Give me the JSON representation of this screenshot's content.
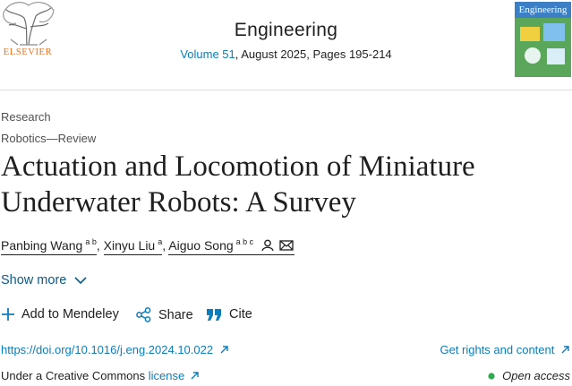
{
  "publisher": {
    "name": "ELSEVIER"
  },
  "journal": {
    "name": "Engineering",
    "volume_link": "Volume 51",
    "issue_details": ", August 2025, Pages 195-214",
    "cover_title": "Engineering"
  },
  "article": {
    "type": "Research",
    "section": "Robotics—Review",
    "title": "Actuation and Locomotion of Miniature Underwater Robots: A Survey",
    "authors": [
      {
        "name": "Panbing Wang",
        "affiliations": "a b"
      },
      {
        "name": "Xinyu Liu",
        "affiliations": "a"
      },
      {
        "name": "Aiguo Song",
        "affiliations": "a b c"
      }
    ],
    "author_separator": ","
  },
  "show_more": "Show more",
  "actions": [
    "Add to Mendeley",
    "Share",
    "Cite"
  ],
  "doi": "https://doi.org/10.1016/j.eng.2024.10.022",
  "rights": "Get rights and content",
  "license": {
    "prefix": "Under a Creative Commons",
    "link": "license"
  },
  "access": "Open access"
}
